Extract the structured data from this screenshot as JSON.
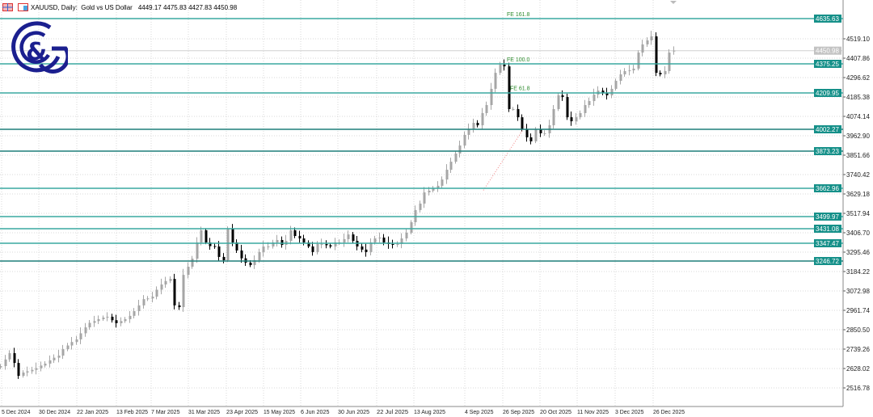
{
  "header": {
    "symbol_line": "XAUUSD, Daily:  Gold vs US Dollar",
    "ohlc": "4449.17 4475.83 4427.83 4450.98",
    "icons": [
      "chart-window-icon",
      "chart-properties-icon"
    ]
  },
  "logo": {
    "name": "G&G logo",
    "text": "G&G",
    "color": "#1b1f8f"
  },
  "colors": {
    "up_candle": "#a6a6a6",
    "down_candle": "#000000",
    "level_line": "#3aa9a0",
    "level_label_bg": "#159089",
    "current_price_bg": "#c3c3c3",
    "fib_text": "#2e8b2e",
    "grid": "#d9d9d9"
  },
  "chart_data": {
    "type": "candlestick",
    "symbol": "XAUUSD",
    "timeframe": "Daily",
    "title": "Gold vs US Dollar",
    "ylim": [
      2450,
      4660
    ],
    "y_ticks": [
      "4519.10",
      "4407.86",
      "4296.62",
      "4185.38",
      "4074.14",
      "3962.90",
      "3851.66",
      "3740.42",
      "3629.18",
      "3517.94",
      "3406.70",
      "3295.46",
      "3184.22",
      "3072.98",
      "2961.74",
      "2850.50",
      "2739.26",
      "2628.02",
      "2516.78"
    ],
    "x_ticks": [
      "5 Dec 2024",
      "30 Dec 2024",
      "22 Jan 2025",
      "13 Feb 2025",
      "7 Mar 2025",
      "31 Mar 2025",
      "23 Apr 2025",
      "15 May 2025",
      "6 Jun 2025",
      "30 Jun 2025",
      "22 Jul 2025",
      "13 Aug 2025",
      "4 Sep 2025",
      "26 Sep 2025",
      "20 Oct 2025",
      "11 Nov 2025",
      "3 Dec 2025",
      "26 Dec 2025"
    ],
    "grid": true,
    "last_price": "4450.98",
    "last_ohlc": {
      "open": 4449.17,
      "high": 4475.83,
      "low": 4427.83,
      "close": 4450.98
    },
    "closes": [
      2642,
      2680,
      2716,
      2660,
      2586,
      2605,
      2612,
      2620,
      2630,
      2645,
      2656,
      2675,
      2690,
      2702,
      2739,
      2760,
      2780,
      2795,
      2830,
      2864,
      2890,
      2900,
      2911,
      2920,
      2925,
      2905,
      2888,
      2900,
      2911,
      2930,
      2957,
      2990,
      3026,
      3030,
      3040,
      3080,
      3110,
      3130,
      3142,
      2990,
      2980,
      3165,
      3212,
      3258,
      3351,
      3421,
      3351,
      3330,
      3328,
      3268,
      3249,
      3430,
      3351,
      3305,
      3260,
      3235,
      3221,
      3249,
      3296,
      3328,
      3328,
      3351,
      3365,
      3337,
      3360,
      3421,
      3388,
      3374,
      3351,
      3328,
      3296,
      3342,
      3342,
      3335,
      3328,
      3351,
      3351,
      3370,
      3397,
      3360,
      3328,
      3310,
      3296,
      3351,
      3374,
      3379,
      3351,
      3342,
      3337,
      3342,
      3374,
      3407,
      3467,
      3537,
      3574,
      3638,
      3648,
      3662,
      3676,
      3712,
      3768,
      3814,
      3861,
      3907,
      3968,
      4000,
      4037,
      4023,
      4093,
      4139,
      4232,
      4324,
      4371,
      4361,
      4116,
      4116,
      4069,
      4000,
      3954,
      3931,
      4000,
      3977,
      3977,
      4023,
      4116,
      4195,
      4185,
      4069,
      4046,
      4069,
      4093,
      4139,
      4162,
      4199,
      4222,
      4208,
      4195,
      4232,
      4278,
      4315,
      4334,
      4338,
      4348,
      4440,
      4487,
      4510,
      4533,
      4324,
      4315,
      4334,
      4440,
      4450.98
    ],
    "levels": [
      "4635.63",
      "4375.25",
      "4209.95",
      "4002.27",
      "3873.23",
      "3662.96",
      "3499.97",
      "3431.08",
      "3347.47",
      "3246.72"
    ],
    "fib_labels": [
      {
        "text": "FE 161.8",
        "price": 4635.63
      },
      {
        "text": "FE 100.0",
        "price": 4375.25
      },
      {
        "text": "FE 61.8",
        "price": 4209.95
      }
    ]
  }
}
